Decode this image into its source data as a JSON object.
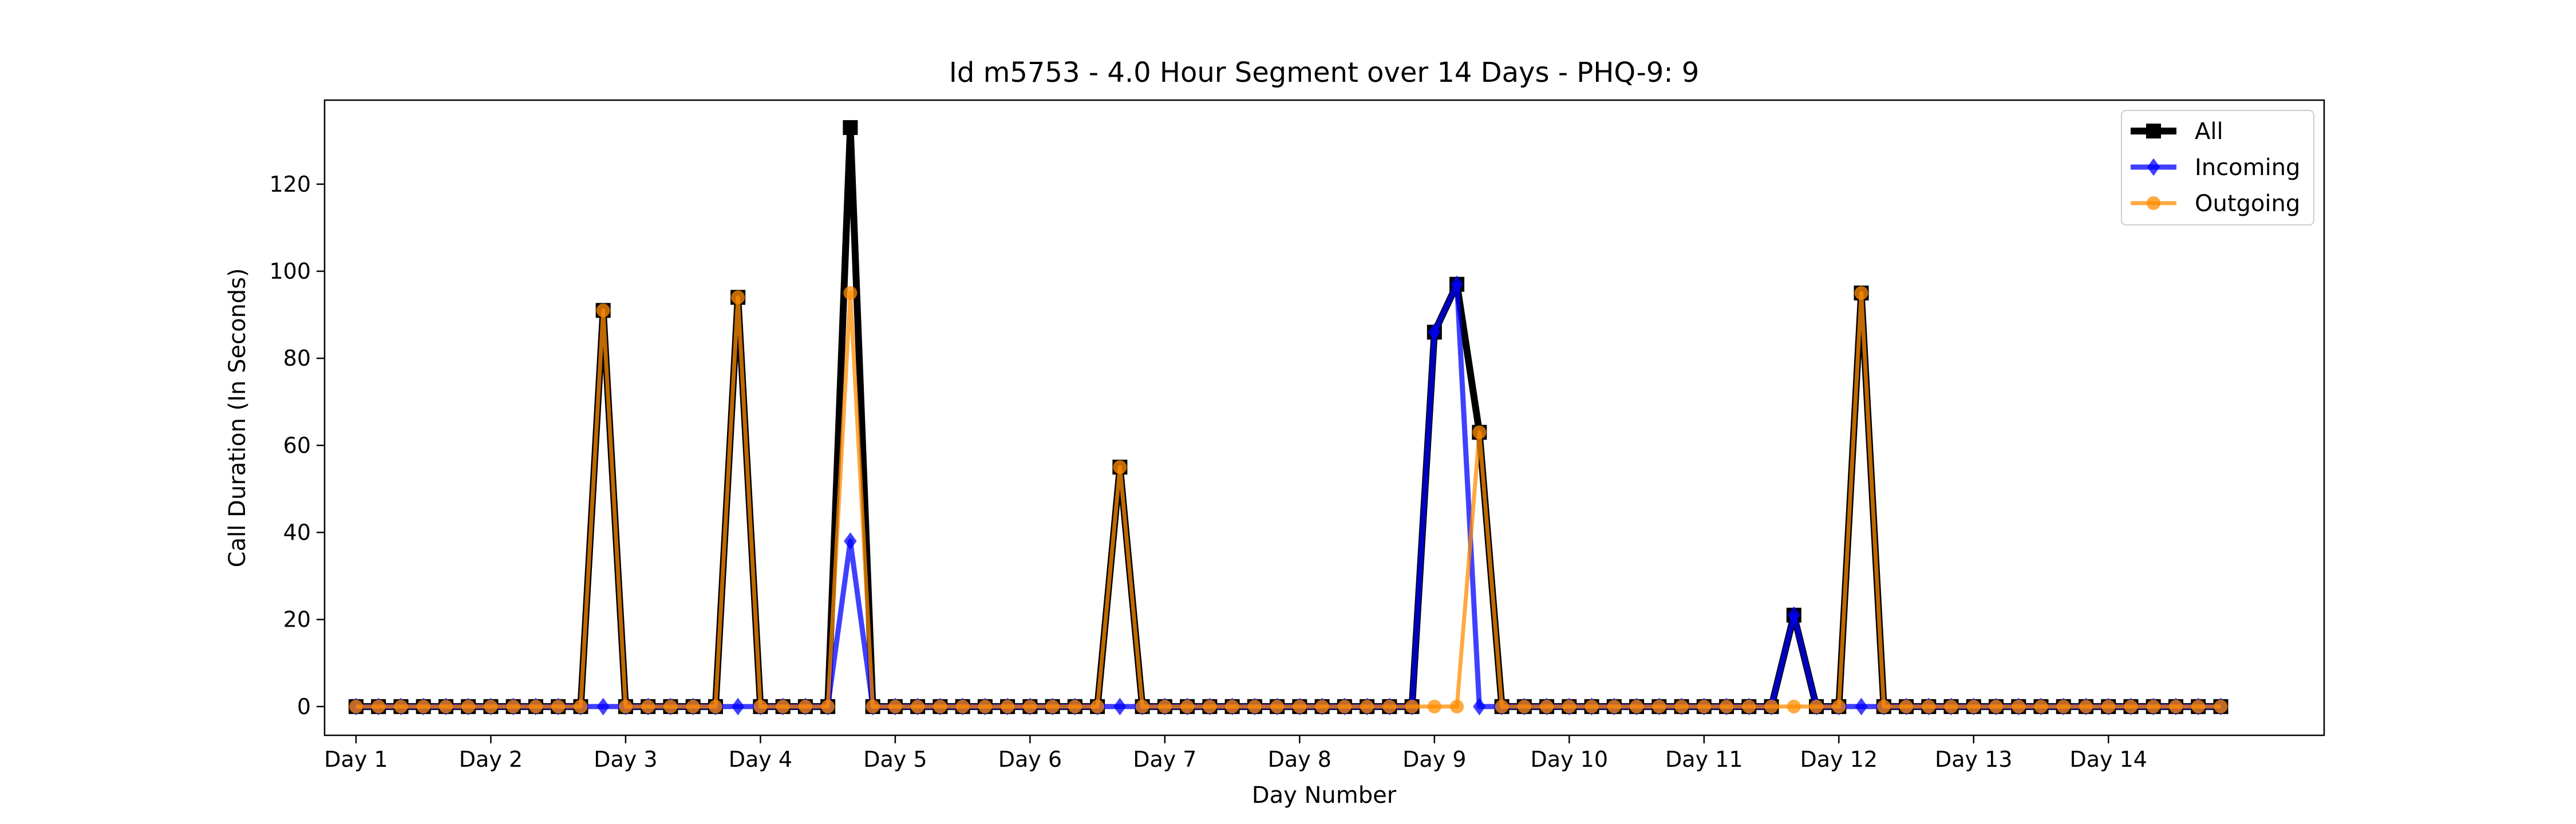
{
  "chart_data": {
    "type": "line",
    "title": "Id m5753 - 4.0 Hour Segment over 14 Days - PHQ-9: 9",
    "xlabel": "Day Number",
    "ylabel": "Call Duration (In Seconds)",
    "x_tick_labels": [
      "Day 1",
      "Day 2",
      "Day 3",
      "Day 4",
      "Day 5",
      "Day 6",
      "Day 7",
      "Day 8",
      "Day 9",
      "Day 10",
      "Day 11",
      "Day 12",
      "Day 13",
      "Day 14"
    ],
    "y_ticks": [
      0,
      20,
      40,
      60,
      80,
      100,
      120
    ],
    "ylim": [
      -6.6,
      139.3
    ],
    "xlim": [
      -1.4,
      87.6
    ],
    "grid": false,
    "legend_position": "top-right",
    "segments_per_day": 6,
    "series": [
      {
        "name": "All",
        "color": "#000000",
        "marker": "square",
        "values": [
          0,
          0,
          0,
          0,
          0,
          0,
          0,
          0,
          0,
          0,
          0,
          91,
          0,
          0,
          0,
          0,
          0,
          94,
          0,
          0,
          0,
          0,
          133,
          0,
          0,
          0,
          0,
          0,
          0,
          0,
          0,
          0,
          0,
          0,
          55,
          0,
          0,
          0,
          0,
          0,
          0,
          0,
          0,
          0,
          0,
          0,
          0,
          0,
          86,
          97,
          63,
          0,
          0,
          0,
          0,
          0,
          0,
          0,
          0,
          0,
          0,
          0,
          0,
          0,
          21,
          0,
          0,
          95,
          0,
          0,
          0,
          0,
          0,
          0,
          0,
          0,
          0,
          0,
          0,
          0,
          0,
          0,
          0,
          0
        ]
      },
      {
        "name": "Incoming",
        "color": "#0000ff",
        "marker": "diamond",
        "values": [
          0,
          0,
          0,
          0,
          0,
          0,
          0,
          0,
          0,
          0,
          0,
          0,
          0,
          0,
          0,
          0,
          0,
          0,
          0,
          0,
          0,
          0,
          38,
          0,
          0,
          0,
          0,
          0,
          0,
          0,
          0,
          0,
          0,
          0,
          0,
          0,
          0,
          0,
          0,
          0,
          0,
          0,
          0,
          0,
          0,
          0,
          0,
          0,
          86,
          97,
          0,
          0,
          0,
          0,
          0,
          0,
          0,
          0,
          0,
          0,
          0,
          0,
          0,
          0,
          21,
          0,
          0,
          0,
          0,
          0,
          0,
          0,
          0,
          0,
          0,
          0,
          0,
          0,
          0,
          0,
          0,
          0,
          0,
          0
        ]
      },
      {
        "name": "Outgoing",
        "color": "#ff8c00",
        "marker": "circle",
        "values": [
          0,
          0,
          0,
          0,
          0,
          0,
          0,
          0,
          0,
          0,
          0,
          91,
          0,
          0,
          0,
          0,
          0,
          94,
          0,
          0,
          0,
          0,
          95,
          0,
          0,
          0,
          0,
          0,
          0,
          0,
          0,
          0,
          0,
          0,
          55,
          0,
          0,
          0,
          0,
          0,
          0,
          0,
          0,
          0,
          0,
          0,
          0,
          0,
          0,
          0,
          63,
          0,
          0,
          0,
          0,
          0,
          0,
          0,
          0,
          0,
          0,
          0,
          0,
          0,
          0,
          0,
          0,
          95,
          0,
          0,
          0,
          0,
          0,
          0,
          0,
          0,
          0,
          0,
          0,
          0,
          0,
          0,
          0,
          0
        ]
      }
    ]
  }
}
